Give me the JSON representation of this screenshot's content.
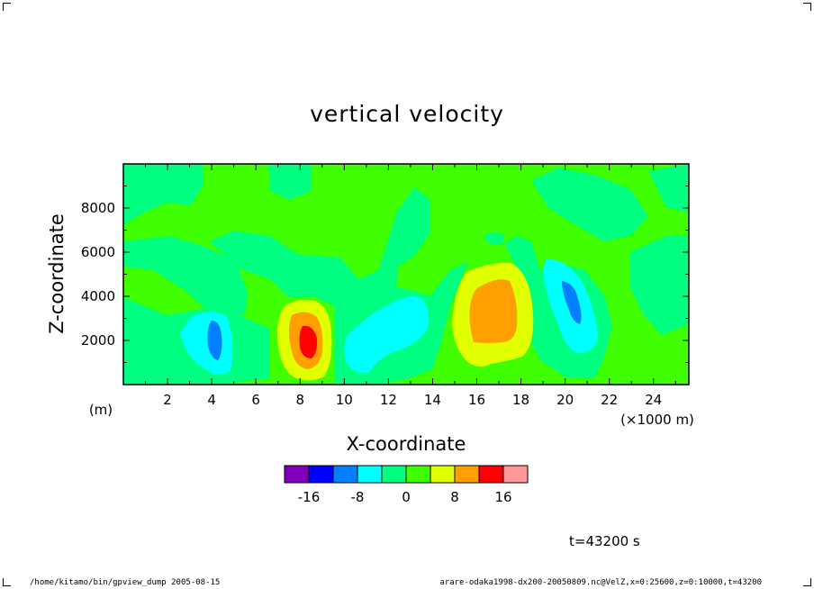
{
  "title": "vertical velocity",
  "time_label": "t=43200 s",
  "footer_left": "/home/kitamo/bin/gpview_dump  2005-08-15",
  "footer_right": "arare-odaka1998-dx200-20050809.nc@VelZ,x=0:25600,z=0:10000,t=43200",
  "chart_data": {
    "type": "heatmap",
    "title": "vertical velocity",
    "xlabel": "X-coordinate",
    "ylabel": "Z-coordinate",
    "x_unit_label": "(×1000 m)",
    "y_unit_label": "(m)",
    "xlim": [
      0,
      25.6
    ],
    "ylim": [
      0,
      10000
    ],
    "x_ticks": [
      2,
      4,
      6,
      8,
      10,
      12,
      14,
      16,
      18,
      20,
      22,
      24
    ],
    "y_ticks": [
      2000,
      4000,
      6000,
      8000
    ],
    "grid": false,
    "colorbar": {
      "levels": [
        -20,
        -16,
        -12,
        -8,
        -4,
        0,
        4,
        8,
        12,
        16,
        20
      ],
      "colors": [
        "#7f00b8",
        "#0000ff",
        "#0080ff",
        "#00ffff",
        "#00ff80",
        "#40ff00",
        "#e0ff00",
        "#ffa000",
        "#ff0000",
        "#ff9999"
      ],
      "tick_labels": [
        "-16",
        "-8",
        "0",
        "8",
        "16"
      ],
      "tick_values": [
        -16,
        -8,
        0,
        8,
        16
      ]
    },
    "features": [
      {
        "kind": "downdraft",
        "x": 4.2,
        "z": 2000,
        "min_value": -12
      },
      {
        "kind": "updraft",
        "x": 8.4,
        "z": 1900,
        "max_value": 12
      },
      {
        "kind": "downdraft",
        "x": 12.3,
        "z": 2200,
        "min_value": -8
      },
      {
        "kind": "updraft",
        "x": 16.9,
        "z": 3200,
        "max_value": 8
      },
      {
        "kind": "downdraft",
        "x": 20.3,
        "z": 3600,
        "min_value": -12
      }
    ]
  }
}
